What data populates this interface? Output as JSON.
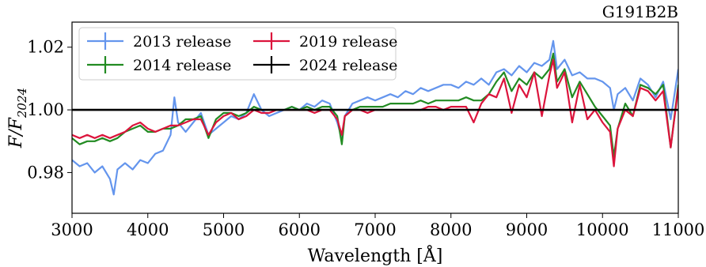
{
  "chart_data": {
    "type": "line",
    "title": "G191B2B",
    "xlabel": "Wavelength [Å]",
    "ylabel": "F/F2024",
    "xlim": [
      3000,
      11000
    ],
    "ylim": [
      0.967,
      1.028
    ],
    "xticks": [
      3000,
      4000,
      5000,
      6000,
      7000,
      8000,
      9000,
      10000,
      11000
    ],
    "yticks": [
      0.98,
      1.0,
      1.02
    ],
    "grid": false,
    "legend": {
      "position": "top-left",
      "columns": 2
    },
    "series": [
      {
        "name": "2013 release",
        "color": "#6495ed",
        "x": [
          3000,
          3100,
          3200,
          3300,
          3400,
          3500,
          3550,
          3600,
          3700,
          3800,
          3900,
          4000,
          4100,
          4200,
          4300,
          4350,
          4400,
          4500,
          4600,
          4700,
          4800,
          4900,
          5000,
          5100,
          5200,
          5300,
          5400,
          5500,
          5600,
          5700,
          5800,
          5900,
          6000,
          6100,
          6200,
          6300,
          6400,
          6500,
          6560,
          6600,
          6700,
          6800,
          6900,
          7000,
          7100,
          7200,
          7300,
          7400,
          7500,
          7600,
          7700,
          7800,
          7900,
          8000,
          8100,
          8200,
          8300,
          8400,
          8500,
          8600,
          8700,
          8800,
          8900,
          9000,
          9100,
          9200,
          9300,
          9350,
          9400,
          9500,
          9600,
          9700,
          9800,
          9900,
          10000,
          10100,
          10150,
          10200,
          10300,
          10400,
          10500,
          10600,
          10700,
          10800,
          10900,
          11000
        ],
        "y": [
          0.984,
          0.982,
          0.983,
          0.98,
          0.982,
          0.978,
          0.973,
          0.981,
          0.983,
          0.981,
          0.984,
          0.983,
          0.986,
          0.987,
          0.992,
          1.004,
          0.996,
          0.993,
          0.996,
          0.999,
          0.992,
          0.994,
          0.996,
          0.998,
          0.997,
          0.999,
          1.005,
          1.0,
          0.998,
          0.999,
          1.0,
          1.001,
          1.0,
          1.002,
          1.001,
          1.003,
          1.002,
          0.996,
          0.991,
          0.998,
          1.002,
          1.003,
          1.004,
          1.003,
          1.004,
          1.005,
          1.004,
          1.006,
          1.005,
          1.007,
          1.006,
          1.007,
          1.008,
          1.008,
          1.007,
          1.009,
          1.008,
          1.01,
          1.008,
          1.012,
          1.013,
          1.011,
          1.014,
          1.012,
          1.015,
          1.014,
          1.016,
          1.022,
          1.013,
          1.016,
          1.011,
          1.012,
          1.01,
          1.01,
          1.009,
          1.007,
          1.0,
          1.005,
          1.007,
          1.003,
          1.01,
          1.008,
          1.004,
          1.009,
          0.997,
          1.013
        ]
      },
      {
        "name": "2014 release",
        "color": "#228b22",
        "x": [
          3000,
          3100,
          3200,
          3300,
          3400,
          3500,
          3600,
          3700,
          3800,
          3900,
          4000,
          4100,
          4200,
          4300,
          4400,
          4500,
          4600,
          4700,
          4800,
          4900,
          5000,
          5100,
          5200,
          5300,
          5400,
          5500,
          5600,
          5700,
          5800,
          5900,
          6000,
          6100,
          6200,
          6300,
          6400,
          6500,
          6560,
          6600,
          6700,
          6800,
          6900,
          7000,
          7100,
          7200,
          7300,
          7400,
          7500,
          7600,
          7700,
          7800,
          7900,
          8000,
          8100,
          8200,
          8300,
          8400,
          8500,
          8600,
          8700,
          8800,
          8900,
          9000,
          9100,
          9200,
          9300,
          9350,
          9400,
          9500,
          9600,
          9700,
          9800,
          9900,
          10000,
          10100,
          10150,
          10200,
          10300,
          10400,
          10500,
          10600,
          10700,
          10800,
          10900,
          11000
        ],
        "y": [
          0.991,
          0.989,
          0.99,
          0.99,
          0.991,
          0.99,
          0.991,
          0.993,
          0.994,
          0.995,
          0.993,
          0.993,
          0.994,
          0.994,
          0.995,
          0.997,
          0.997,
          0.998,
          0.991,
          0.997,
          0.999,
          0.999,
          0.998,
          0.999,
          1.001,
          1.0,
          1.0,
          1.0,
          1.0,
          1.001,
          1.0,
          1.001,
          1.0,
          1.001,
          1.001,
          0.998,
          0.989,
          0.998,
          1.0,
          1.001,
          1.001,
          1.001,
          1.001,
          1.002,
          1.002,
          1.002,
          1.002,
          1.003,
          1.002,
          1.003,
          1.003,
          1.003,
          1.003,
          1.004,
          1.003,
          1.003,
          1.005,
          1.009,
          1.012,
          1.006,
          1.01,
          1.008,
          1.012,
          1.01,
          1.013,
          1.018,
          1.009,
          1.013,
          1.004,
          1.009,
          1.005,
          1.001,
          0.998,
          0.995,
          0.985,
          0.994,
          1.002,
          0.998,
          1.008,
          1.007,
          1.005,
          1.008,
          0.988,
          1.008
        ]
      },
      {
        "name": "2019 release",
        "color": "#dc143c",
        "x": [
          3000,
          3100,
          3200,
          3300,
          3400,
          3500,
          3600,
          3700,
          3800,
          3900,
          4000,
          4100,
          4200,
          4300,
          4400,
          4500,
          4600,
          4700,
          4800,
          4900,
          5000,
          5100,
          5200,
          5300,
          5400,
          5500,
          5600,
          5700,
          5800,
          5900,
          6000,
          6100,
          6200,
          6300,
          6400,
          6500,
          6560,
          6600,
          6700,
          6800,
          6900,
          7000,
          7100,
          7200,
          7300,
          7400,
          7500,
          7600,
          7700,
          7800,
          7900,
          8000,
          8100,
          8200,
          8300,
          8400,
          8500,
          8600,
          8700,
          8800,
          8900,
          9000,
          9100,
          9200,
          9300,
          9350,
          9400,
          9500,
          9600,
          9700,
          9800,
          9900,
          10000,
          10100,
          10150,
          10200,
          10300,
          10400,
          10500,
          10600,
          10700,
          10800,
          10900,
          11000
        ],
        "y": [
          0.992,
          0.991,
          0.992,
          0.991,
          0.992,
          0.991,
          0.992,
          0.993,
          0.995,
          0.996,
          0.994,
          0.993,
          0.994,
          0.995,
          0.995,
          0.996,
          0.997,
          0.997,
          0.992,
          0.996,
          0.998,
          0.999,
          0.997,
          0.998,
          1.0,
          0.999,
          0.999,
          1.0,
          1.0,
          1.0,
          1.0,
          1.0,
          0.999,
          1.0,
          1.0,
          0.997,
          0.992,
          0.998,
          1.0,
          1.0,
          0.999,
          1.0,
          1.0,
          1.0,
          1.0,
          1.0,
          1.0,
          1.0,
          1.001,
          1.001,
          1.0,
          1.001,
          1.001,
          1.001,
          0.996,
          1.002,
          1.005,
          1.004,
          1.01,
          0.999,
          1.008,
          1.004,
          1.012,
          0.998,
          1.011,
          1.016,
          1.007,
          1.012,
          0.996,
          1.008,
          0.997,
          1.0,
          0.996,
          0.993,
          0.982,
          0.994,
          1.0,
          0.998,
          1.007,
          1.006,
          1.003,
          1.006,
          0.988,
          1.007
        ]
      },
      {
        "name": "2024 release",
        "color": "#000000",
        "x": [
          3000,
          11000
        ],
        "y": [
          1.0,
          1.0
        ]
      }
    ]
  }
}
